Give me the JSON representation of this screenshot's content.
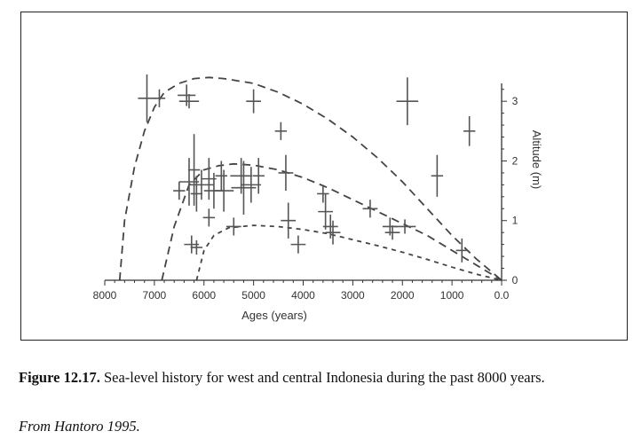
{
  "caption": {
    "label": "Figure 12.17.",
    "text": " Sea-level history for west and central Indonesia during the past 8000 years."
  },
  "source": "From Hantoro 1995.",
  "chart_data": {
    "type": "scatter",
    "xlabel": "Ages (years)",
    "ylabel": "Altitude (m)",
    "xlim": [
      8000,
      0
    ],
    "ylim": [
      0,
      3.3
    ],
    "x_reversed": true,
    "y_axis_side": "right",
    "xticks": [
      8000,
      7000,
      6000,
      5000,
      4000,
      3000,
      2000,
      1000,
      0
    ],
    "xtick_labels": [
      "8000",
      "7000",
      "6000",
      "5000",
      "4000",
      "3000",
      "2000",
      "1000",
      "0.0"
    ],
    "yticks": [
      0,
      1,
      2,
      3
    ],
    "ytick_labels": [
      "0",
      "1",
      "2",
      "3"
    ],
    "grid": false,
    "colors": {
      "markers": "#555555",
      "curves": "#444444",
      "axes": "#333333"
    },
    "points": [
      {
        "x": 7150,
        "y": 3.05,
        "xe": 180,
        "ye": 0.4
      },
      {
        "x": 6900,
        "y": 3.05,
        "xe": 120,
        "ye": 0.15
      },
      {
        "x": 6350,
        "y": 3.1,
        "xe": 180,
        "ye": 0.18
      },
      {
        "x": 6300,
        "y": 3.0,
        "xe": 200,
        "ye": 0.12
      },
      {
        "x": 5000,
        "y": 3.0,
        "xe": 150,
        "ye": 0.2
      },
      {
        "x": 1900,
        "y": 3.0,
        "xe": 220,
        "ye": 0.4
      },
      {
        "x": 4450,
        "y": 2.5,
        "xe": 120,
        "ye": 0.15
      },
      {
        "x": 650,
        "y": 2.5,
        "xe": 120,
        "ye": 0.25
      },
      {
        "x": 6500,
        "y": 1.5,
        "xe": 120,
        "ye": 0.15
      },
      {
        "x": 6300,
        "y": 1.65,
        "xe": 200,
        "ye": 0.4
      },
      {
        "x": 6200,
        "y": 1.85,
        "xe": 120,
        "ye": 0.6
      },
      {
        "x": 6150,
        "y": 1.45,
        "xe": 120,
        "ye": 0.3
      },
      {
        "x": 6050,
        "y": 1.6,
        "xe": 250,
        "ye": 0.25
      },
      {
        "x": 5900,
        "y": 1.7,
        "xe": 150,
        "ye": 0.35
      },
      {
        "x": 5800,
        "y": 1.5,
        "xe": 200,
        "ye": 0.3
      },
      {
        "x": 5650,
        "y": 1.75,
        "xe": 120,
        "ye": 0.25
      },
      {
        "x": 5600,
        "y": 1.5,
        "xe": 200,
        "ye": 0.35
      },
      {
        "x": 5250,
        "y": 1.75,
        "xe": 220,
        "ye": 0.3
      },
      {
        "x": 5200,
        "y": 1.55,
        "xe": 250,
        "ye": 0.45
      },
      {
        "x": 5050,
        "y": 1.6,
        "xe": 200,
        "ye": 0.3
      },
      {
        "x": 4900,
        "y": 1.75,
        "xe": 120,
        "ye": 0.3
      },
      {
        "x": 4350,
        "y": 1.8,
        "xe": 150,
        "ye": 0.3
      },
      {
        "x": 1300,
        "y": 1.75,
        "xe": 120,
        "ye": 0.35
      },
      {
        "x": 5900,
        "y": 1.05,
        "xe": 120,
        "ye": 0.15
      },
      {
        "x": 5400,
        "y": 0.9,
        "xe": 150,
        "ye": 0.15
      },
      {
        "x": 4300,
        "y": 1.0,
        "xe": 150,
        "ye": 0.3
      },
      {
        "x": 3600,
        "y": 1.45,
        "xe": 120,
        "ye": 0.15
      },
      {
        "x": 3550,
        "y": 1.15,
        "xe": 150,
        "ye": 0.3
      },
      {
        "x": 3450,
        "y": 0.9,
        "xe": 150,
        "ye": 0.2
      },
      {
        "x": 3400,
        "y": 0.8,
        "xe": 150,
        "ye": 0.2
      },
      {
        "x": 2650,
        "y": 1.2,
        "xe": 150,
        "ye": 0.15
      },
      {
        "x": 2250,
        "y": 0.9,
        "xe": 150,
        "ye": 0.15
      },
      {
        "x": 2200,
        "y": 0.8,
        "xe": 150,
        "ye": 0.12
      },
      {
        "x": 1950,
        "y": 0.9,
        "xe": 220,
        "ye": 0.12
      },
      {
        "x": 6250,
        "y": 0.6,
        "xe": 150,
        "ye": 0.15
      },
      {
        "x": 6150,
        "y": 0.55,
        "xe": 120,
        "ye": 0.12
      },
      {
        "x": 4100,
        "y": 0.6,
        "xe": 150,
        "ye": 0.15
      },
      {
        "x": 800,
        "y": 0.5,
        "xe": 120,
        "ye": 0.2
      }
    ],
    "curves": [
      {
        "style": "dashed-long",
        "x": [
          7700,
          7600,
          7400,
          7200,
          7000,
          6800,
          6500,
          6200,
          5900,
          5600,
          5000,
          4500,
          4000,
          3500,
          3000,
          2500,
          2000,
          1500,
          1000,
          500,
          0
        ],
        "y": [
          0,
          1.0,
          1.9,
          2.5,
          2.9,
          3.15,
          3.3,
          3.38,
          3.4,
          3.38,
          3.3,
          3.15,
          2.95,
          2.7,
          2.4,
          2.05,
          1.65,
          1.2,
          0.75,
          0.35,
          0
        ]
      },
      {
        "style": "dashed-long",
        "x": [
          6850,
          6600,
          6300,
          6000,
          5700,
          5400,
          5000,
          4500,
          4000,
          3500,
          3000,
          2500,
          2000,
          1500,
          1000,
          500,
          0
        ],
        "y": [
          0,
          0.9,
          1.6,
          1.85,
          1.92,
          1.95,
          1.93,
          1.85,
          1.72,
          1.55,
          1.35,
          1.15,
          0.95,
          0.75,
          0.5,
          0.25,
          0
        ]
      },
      {
        "style": "dashed-short",
        "x": [
          6150,
          6000,
          5800,
          5500,
          5000,
          4500,
          4000,
          3500,
          3000,
          2500,
          2000,
          1500,
          1000,
          500,
          0
        ],
        "y": [
          0,
          0.5,
          0.75,
          0.88,
          0.92,
          0.9,
          0.85,
          0.78,
          0.68,
          0.58,
          0.47,
          0.35,
          0.22,
          0.1,
          0
        ]
      }
    ]
  }
}
